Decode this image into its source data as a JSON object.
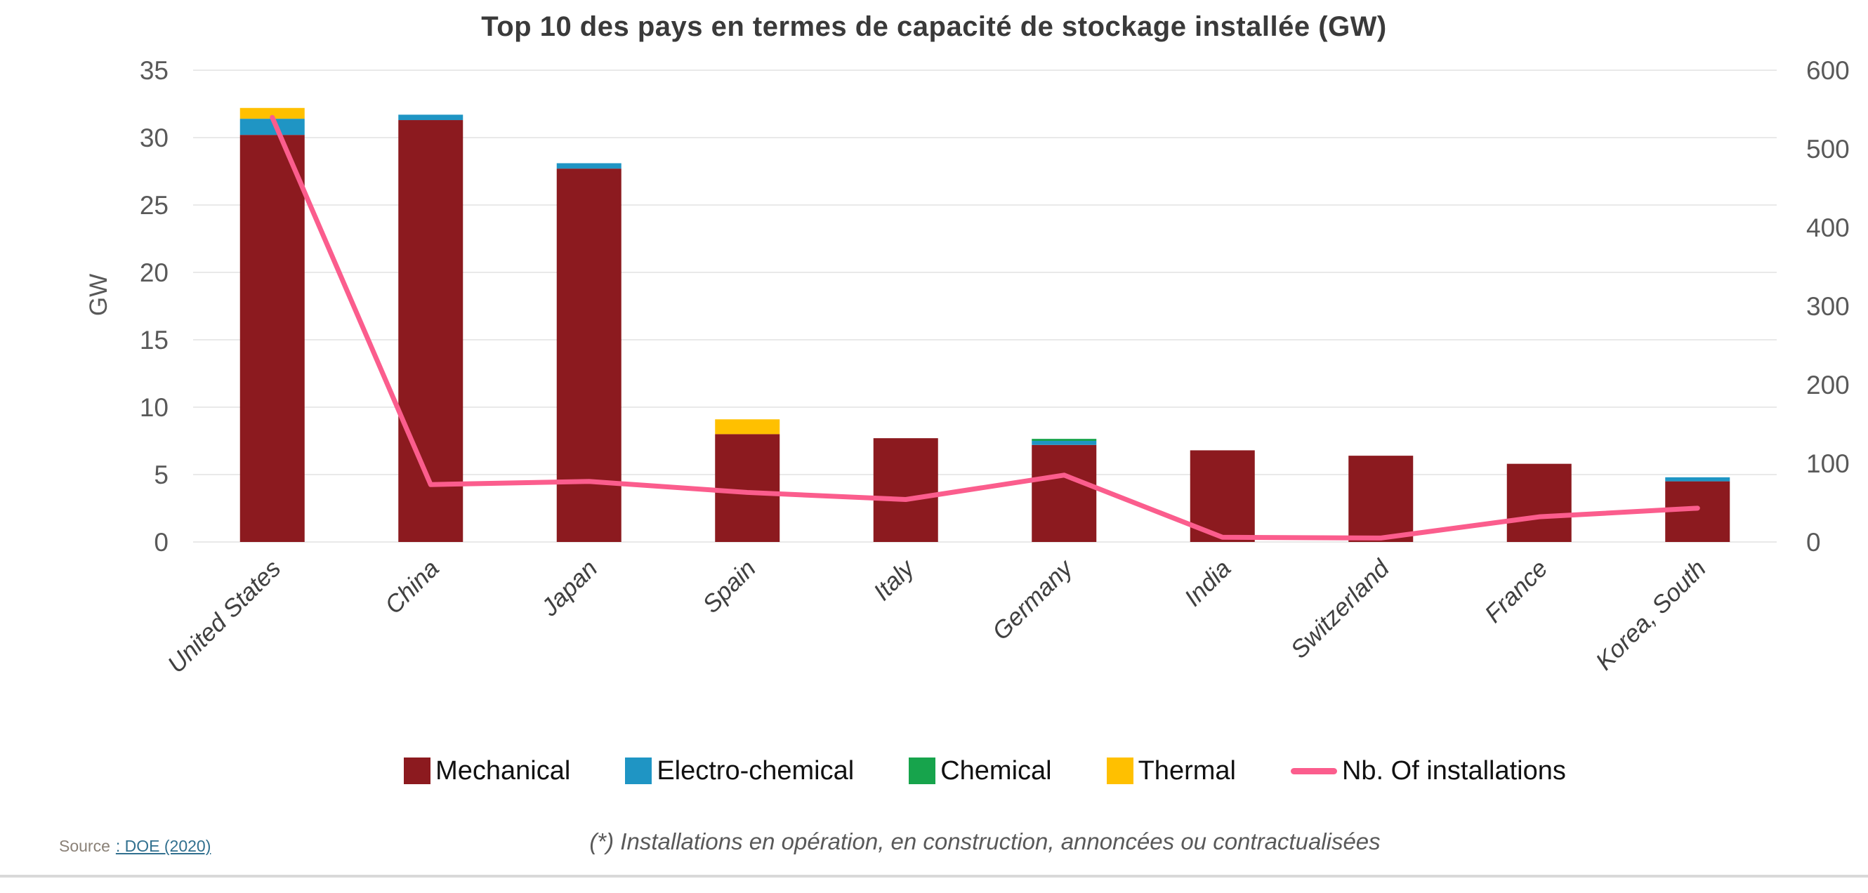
{
  "page": {
    "title": "Top 10 des pays en termes de capacité de stockage installée (GW)"
  },
  "chart_data": {
    "type": "bar",
    "stacked": true,
    "title": "Top 10 des pays en termes de capacité de stockage installée (GW)",
    "categories": [
      "United States",
      "China",
      "Japan",
      "Spain",
      "Italy",
      "Germany",
      "India",
      "Switzerland",
      "France",
      "Korea, South"
    ],
    "series": [
      {
        "name": "Mechanical",
        "type": "bar",
        "axis": "left",
        "color": "#8c1a1f",
        "values": [
          30.2,
          31.3,
          27.7,
          8.0,
          7.7,
          7.2,
          6.8,
          6.4,
          5.8,
          4.5
        ]
      },
      {
        "name": "Electro-chemical",
        "type": "bar",
        "axis": "left",
        "color": "#1f95c4",
        "values": [
          1.2,
          0.4,
          0.4,
          0,
          0,
          0.3,
          0,
          0,
          0,
          0.3
        ]
      },
      {
        "name": "Chemical",
        "type": "bar",
        "axis": "left",
        "color": "#17a44c",
        "values": [
          0,
          0,
          0,
          0,
          0,
          0.15,
          0,
          0,
          0,
          0
        ]
      },
      {
        "name": "Thermal",
        "type": "bar",
        "axis": "left",
        "color": "#ffc000",
        "values": [
          0.8,
          0,
          0,
          1.1,
          0,
          0,
          0,
          0,
          0,
          0
        ]
      },
      {
        "name": "Nb. Of installations",
        "type": "line",
        "axis": "right",
        "color": "#fb5d8d",
        "values": [
          540,
          73,
          77,
          63,
          54,
          85,
          6,
          5,
          32,
          43
        ]
      }
    ],
    "left_axis": {
      "label": "GW",
      "min": 0,
      "max": 35,
      "step": 5,
      "ticks": [
        "0",
        "5",
        "10",
        "15",
        "20",
        "25",
        "30",
        "35"
      ]
    },
    "right_axis": {
      "min": 0,
      "max": 600,
      "step": 100,
      "ticks": [
        "0",
        "100",
        "200",
        "300",
        "400",
        "500",
        "600"
      ]
    },
    "grid": true,
    "legend_position": "bottom"
  },
  "legend": {
    "items": [
      {
        "label": "Mechanical",
        "color": "#8c1a1f",
        "marker": "square"
      },
      {
        "label": "Electro-chemical",
        "color": "#1f95c4",
        "marker": "square"
      },
      {
        "label": "Chemical",
        "color": "#17a44c",
        "marker": "square"
      },
      {
        "label": "Thermal",
        "color": "#ffc000",
        "marker": "square"
      },
      {
        "label": "Nb. Of installations",
        "color": "#fb5d8d",
        "marker": "line"
      }
    ]
  },
  "footer": {
    "source_label": "Source",
    "source_link": ": DOE (2020)",
    "footnote": "(*) Installations en opération, en construction, annoncées ou contractualisées"
  },
  "style": {
    "grid_color": "#e9e9e9",
    "tick_color": "#595959",
    "category_color": "#404040",
    "title_color": "#3a3a3a"
  }
}
